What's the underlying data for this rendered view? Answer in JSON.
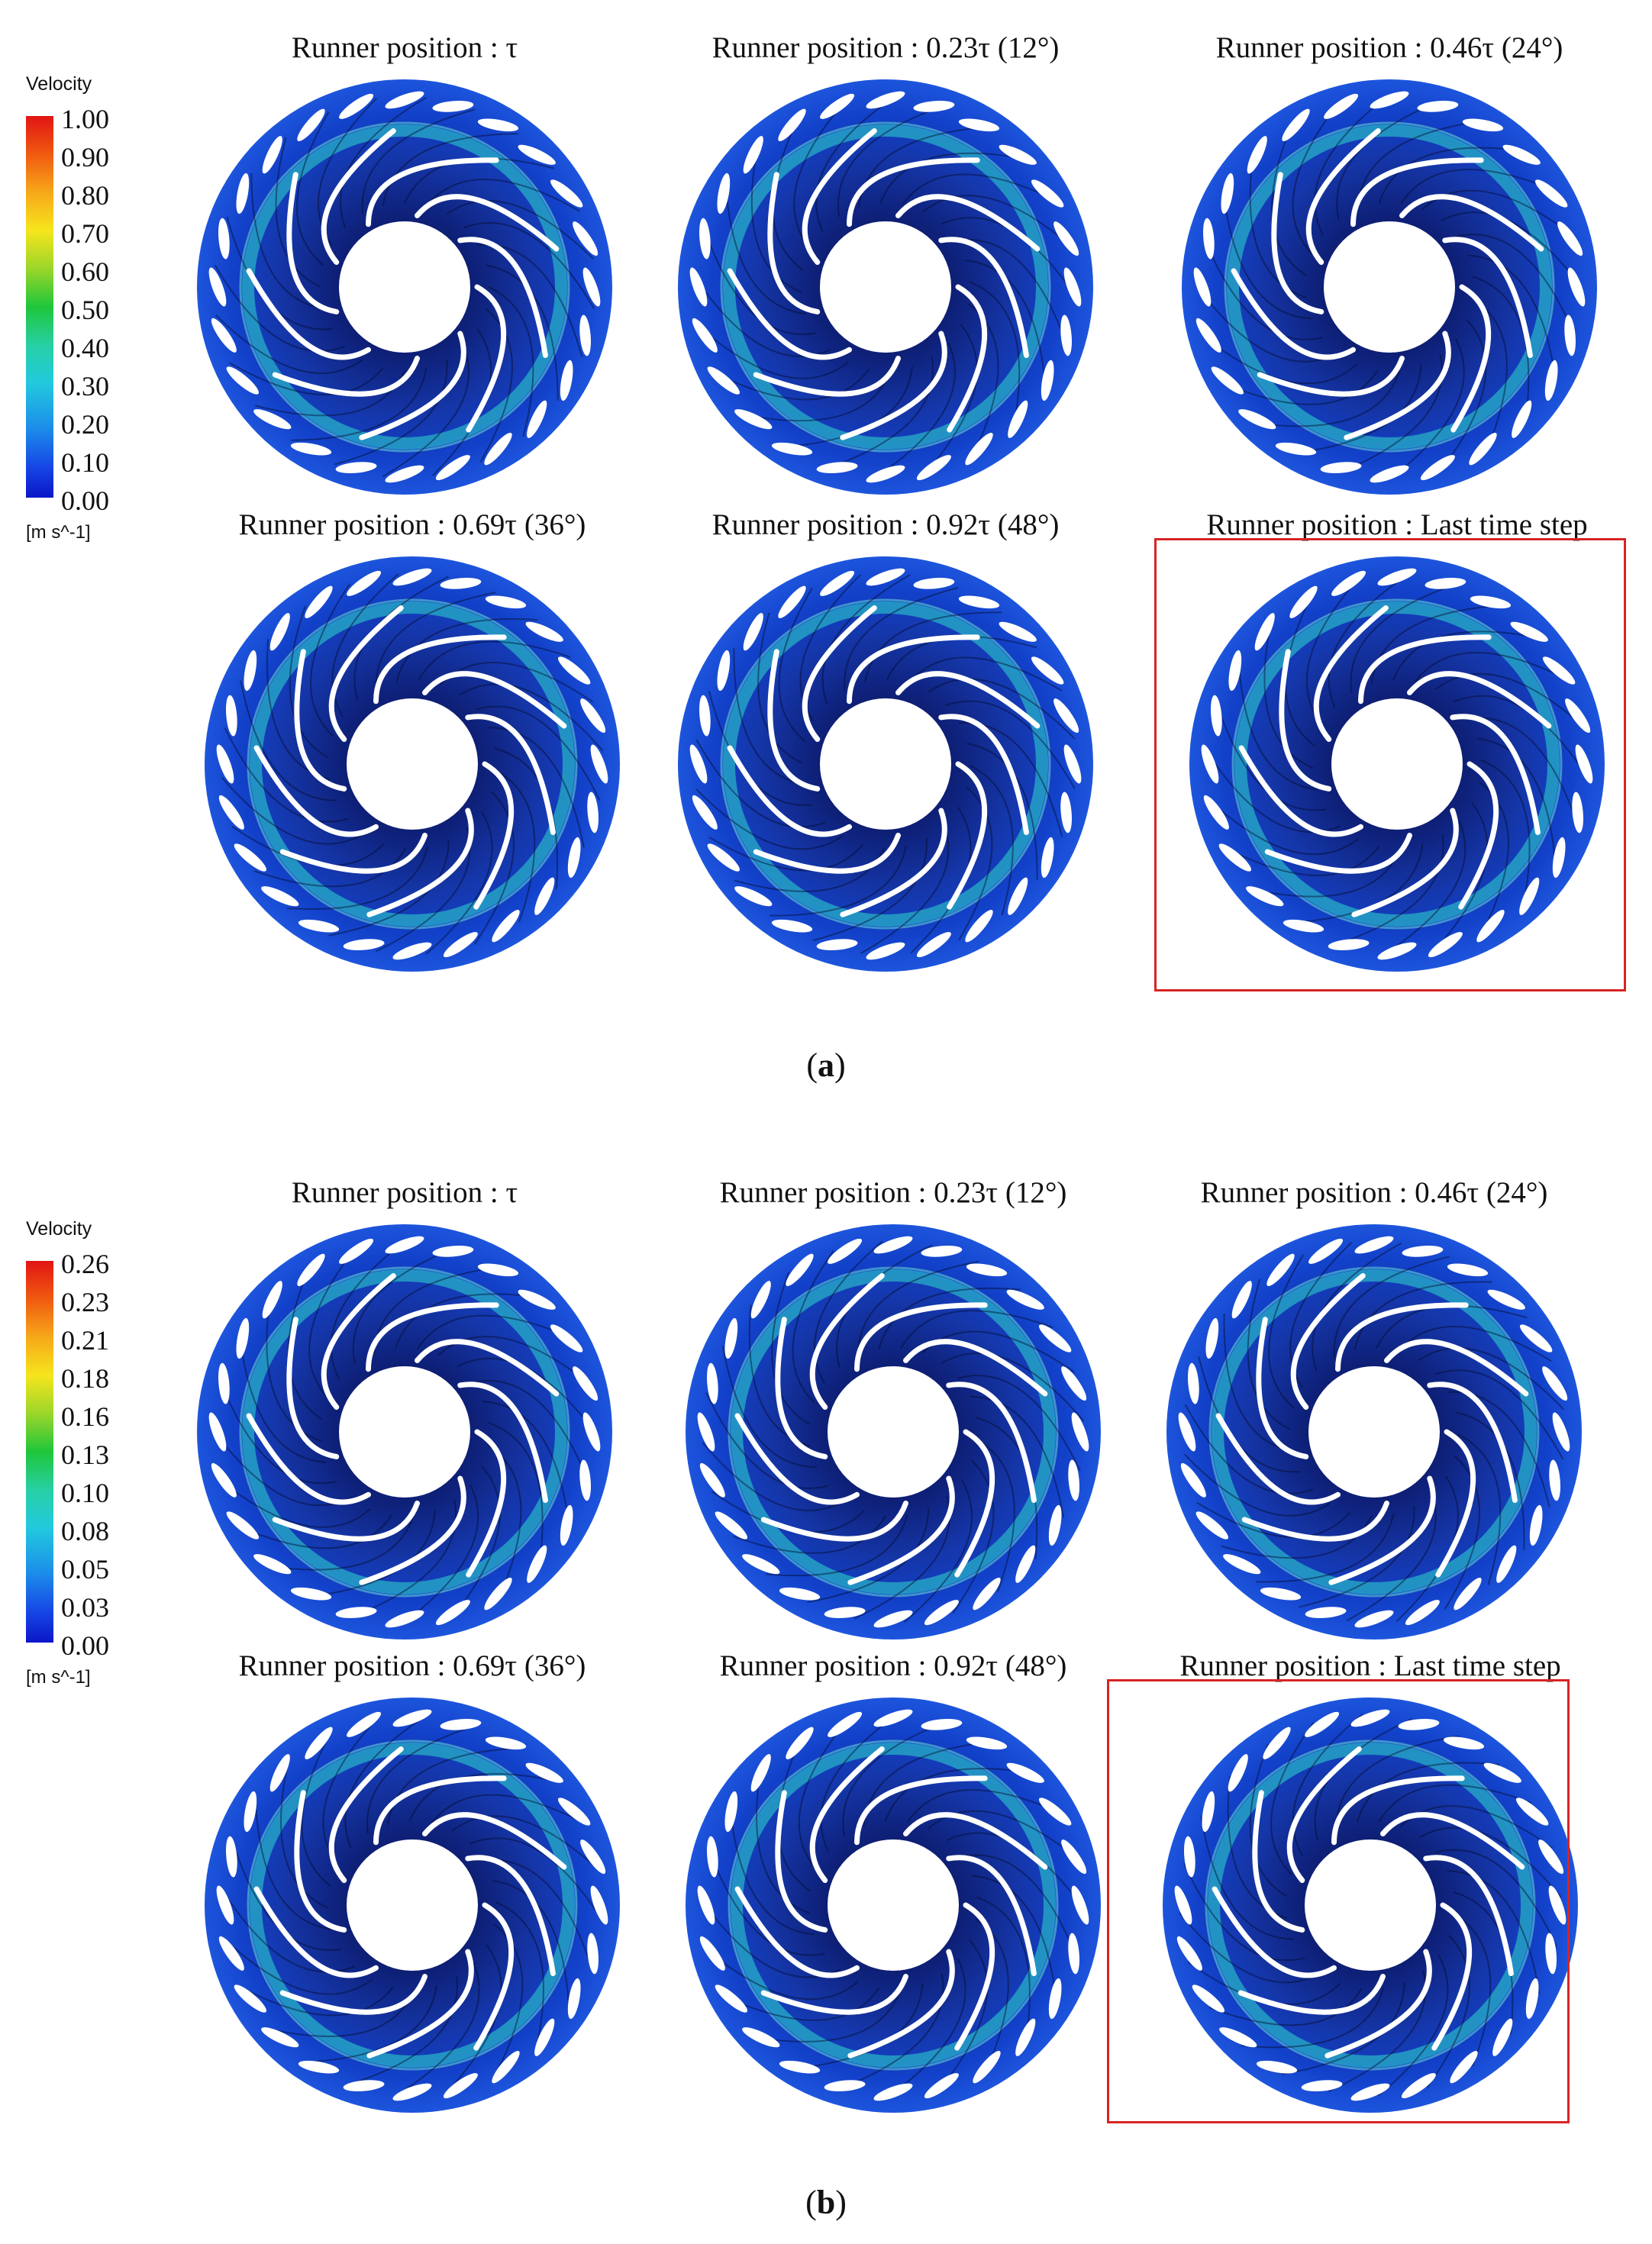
{
  "panels": [
    {
      "id": "a",
      "caption_label": "a",
      "legend": {
        "title": "Velocity",
        "unit": "[m s^-1]",
        "ticks": [
          "1.00",
          "0.90",
          "0.80",
          "0.70",
          "0.60",
          "0.50",
          "0.40",
          "0.30",
          "0.20",
          "0.10",
          "0.00"
        ]
      },
      "subfigures": [
        {
          "title": "Runner position : τ",
          "highlighted": false
        },
        {
          "title": "Runner position : 0.23τ (12°)",
          "highlighted": false
        },
        {
          "title": "Runner position : 0.46τ (24°)",
          "highlighted": false
        },
        {
          "title": "Runner position : 0.69τ (36°)",
          "highlighted": false
        },
        {
          "title": "Runner position : 0.92τ (48°)",
          "highlighted": false
        },
        {
          "title": "Runner position : Last time step",
          "highlighted": true
        }
      ]
    },
    {
      "id": "b",
      "caption_label": "b",
      "legend": {
        "title": "Velocity",
        "unit": "[m s^-1]",
        "ticks": [
          "0.26",
          "0.23",
          "0.21",
          "0.18",
          "0.16",
          "0.13",
          "0.10",
          "0.08",
          "0.05",
          "0.03",
          "0.00"
        ]
      },
      "subfigures": [
        {
          "title": "Runner position : τ",
          "highlighted": false
        },
        {
          "title": "Runner position : 0.23τ (12°)",
          "highlighted": false
        },
        {
          "title": "Runner position : 0.46τ (24°)",
          "highlighted": false
        },
        {
          "title": "Runner position : 0.69τ (36°)",
          "highlighted": false
        },
        {
          "title": "Runner position : 0.92τ (48°)",
          "highlighted": false
        },
        {
          "title": "Runner position : Last time step",
          "highlighted": true
        }
      ]
    }
  ],
  "colors": {
    "background_blue": "#1240c8",
    "flow_cyan": "#2fd8c8",
    "blade": "#ffffff",
    "highlight_box": "#d82424"
  }
}
